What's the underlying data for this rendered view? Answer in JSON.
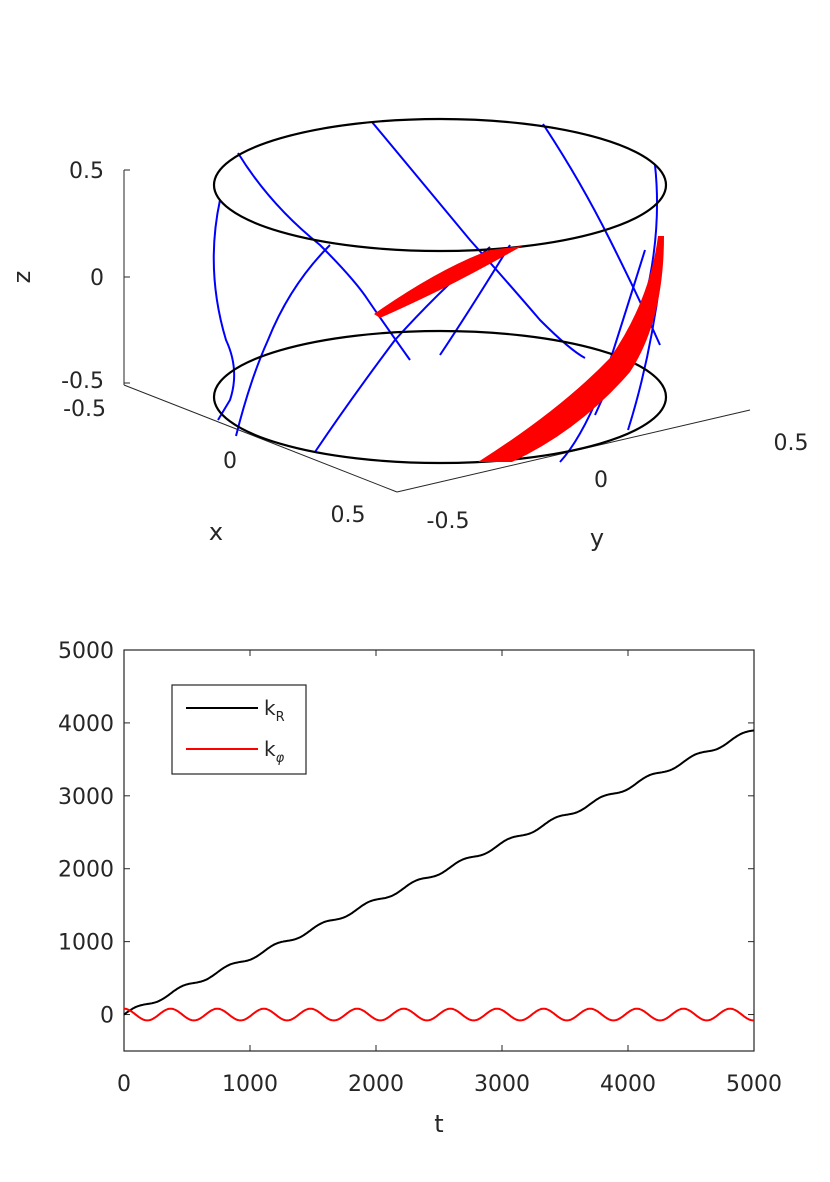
{
  "chart_data": [
    {
      "type": "line",
      "subtype": "3d-surface-curves",
      "xlabel": "x",
      "ylabel": "y",
      "zlabel": "z",
      "x_ticks": [
        "-0.5",
        "0",
        "0.5"
      ],
      "y_ticks": [
        "-0.5",
        "0",
        "0.5"
      ],
      "z_ticks": [
        "0.5",
        "0",
        "-0.5"
      ],
      "xlim": [
        -0.5,
        0.5
      ],
      "ylim": [
        -0.5,
        0.5
      ],
      "zlim": [
        -0.5,
        0.5
      ],
      "cylinder": {
        "radius": 0.5,
        "z_bottom": -0.5,
        "z_top": 0.5
      },
      "colors": {
        "rings": "#000000",
        "field_lines": "#0000ff",
        "tubes": "#ff0000"
      }
    },
    {
      "type": "line",
      "xlabel": "t",
      "ylabel": "",
      "xlim": [
        0,
        5000
      ],
      "ylim": [
        -500,
        5000
      ],
      "x_ticks": [
        "0",
        "1000",
        "2000",
        "3000",
        "4000",
        "5000"
      ],
      "y_ticks": [
        "5000",
        "4000",
        "3000",
        "2000",
        "1000",
        "0"
      ],
      "legend_position": "top-left",
      "grid": false,
      "series": [
        {
          "name_main": "k",
          "name_sub": "R",
          "color": "#000000",
          "kind": "growing",
          "start": 0,
          "end": 3900,
          "ripple_amp": 30,
          "period": 370
        },
        {
          "name_main": "k",
          "name_sub": "φ",
          "color": "#ff0000",
          "kind": "oscillating",
          "amp": 80,
          "period": 370
        }
      ]
    }
  ]
}
